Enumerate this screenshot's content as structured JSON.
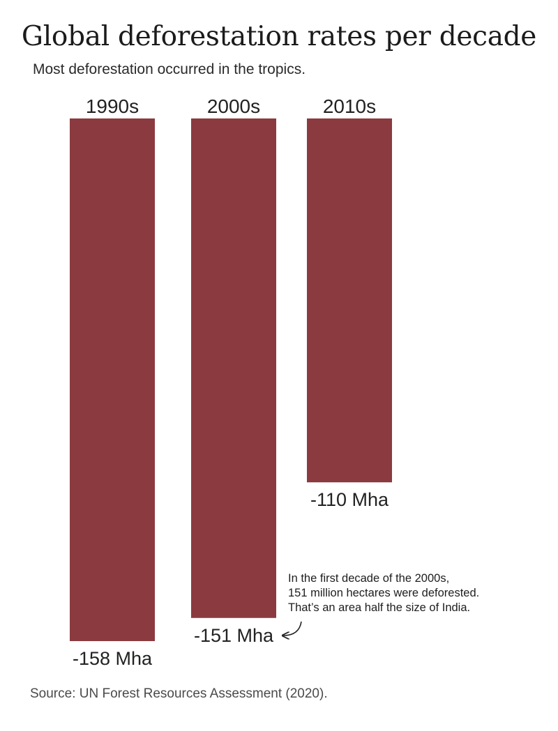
{
  "chart_data": {
    "type": "bar",
    "title": "Global deforestation rates per decade",
    "subtitle": "Most deforestation occurred in the tropics.",
    "categories": [
      "1990s",
      "2000s",
      "2010s"
    ],
    "values": [
      -158,
      -151,
      -110
    ],
    "value_labels": [
      "-158 Mha",
      "-151 Mha",
      "-110 Mha"
    ],
    "units": "Mha",
    "ylim": [
      -158,
      0
    ],
    "grid": false,
    "legend": "none",
    "colors": {
      "bar": "#8b3a3f",
      "text": "#222222"
    },
    "annotation": {
      "lines": [
        "In the first decade of the 2000s,",
        "151 million hectares were deforested.",
        "That’s an area half the size of India."
      ],
      "target_category": "2000s"
    },
    "source": "Source: UN Forest Resources Assessment (2020)."
  }
}
